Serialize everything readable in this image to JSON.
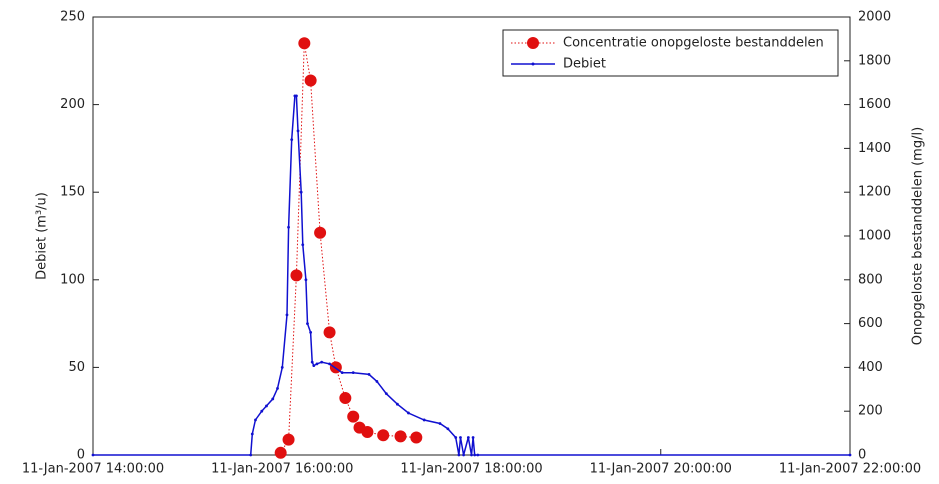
{
  "chart_data": {
    "type": "line",
    "xlim": [
      "11-Jan-2007 14:00:00",
      "11-Jan-2007 22:00:00"
    ],
    "xticks": [
      "11-Jan-2007 14:00:00",
      "11-Jan-2007 16:00:00",
      "11-Jan-2007 18:00:00",
      "11-Jan-2007 20:00:00",
      "11-Jan-2007 22:00:00"
    ],
    "ylabel": "Debiet (m³/u)",
    "y2label": "Onopgeloste bestanddelen (mg/l)",
    "ylim": [
      0,
      250
    ],
    "yticks": [
      0,
      50,
      100,
      150,
      200,
      250
    ],
    "y2lim": [
      0,
      2000
    ],
    "y2ticks": [
      0,
      200,
      400,
      600,
      800,
      1000,
      1200,
      1400,
      1600,
      1800,
      2000
    ],
    "legend": "upper right",
    "series": [
      {
        "name": "Concentratie onopgeloste bestanddelen",
        "color": "#e01010",
        "axis": "y2",
        "style": "dotted-marker",
        "x": [
          "11-Jan-2007 15:59:00",
          "11-Jan-2007 16:04:00",
          "11-Jan-2007 16:09:00",
          "11-Jan-2007 16:14:00",
          "11-Jan-2007 16:18:00",
          "11-Jan-2007 16:24:00",
          "11-Jan-2007 16:30:00",
          "11-Jan-2007 16:34:00",
          "11-Jan-2007 16:40:00",
          "11-Jan-2007 16:45:00",
          "11-Jan-2007 16:49:00",
          "11-Jan-2007 16:54:00",
          "11-Jan-2007 17:04:00",
          "11-Jan-2007 17:15:00",
          "11-Jan-2007 17:25:00"
        ],
        "values": [
          10,
          70,
          820,
          1880,
          1710,
          1015,
          560,
          400,
          260,
          175,
          125,
          105,
          90,
          85,
          80
        ]
      },
      {
        "name": "Debiet",
        "color": "#1010d0",
        "style": "line-dot",
        "x": [
          "11-Jan-2007 14:00:00",
          "11-Jan-2007 15:40:00",
          "11-Jan-2007 15:41:00",
          "11-Jan-2007 15:43:00",
          "11-Jan-2007 15:47:00",
          "11-Jan-2007 15:50:00",
          "11-Jan-2007 15:54:00",
          "11-Jan-2007 15:57:00",
          "11-Jan-2007 16:00:00",
          "11-Jan-2007 16:03:00",
          "11-Jan-2007 16:04:00",
          "11-Jan-2007 16:06:00",
          "11-Jan-2007 16:08:00",
          "11-Jan-2007 16:09:00",
          "11-Jan-2007 16:10:00",
          "11-Jan-2007 16:12:00",
          "11-Jan-2007 16:13:00",
          "11-Jan-2007 16:15:00",
          "11-Jan-2007 16:16:00",
          "11-Jan-2007 16:18:00",
          "11-Jan-2007 16:19:00",
          "11-Jan-2007 16:20:00",
          "11-Jan-2007 16:22:00",
          "11-Jan-2007 16:25:00",
          "11-Jan-2007 16:30:00",
          "11-Jan-2007 16:38:00",
          "11-Jan-2007 16:45:00",
          "11-Jan-2007 16:55:00",
          "11-Jan-2007 17:00:00",
          "11-Jan-2007 17:06:00",
          "11-Jan-2007 17:13:00",
          "11-Jan-2007 17:20:00",
          "11-Jan-2007 17:30:00",
          "11-Jan-2007 17:40:00",
          "11-Jan-2007 17:45:00",
          "11-Jan-2007 17:50:00",
          "11-Jan-2007 17:52:00",
          "11-Jan-2007 17:53:00",
          "11-Jan-2007 17:55:00",
          "11-Jan-2007 17:58:00",
          "11-Jan-2007 18:00:00",
          "11-Jan-2007 18:01:00",
          "11-Jan-2007 18:02:00",
          "11-Jan-2007 18:04:00",
          "11-Jan-2007 22:00:00"
        ],
        "values": [
          0,
          0,
          12,
          20,
          25,
          28,
          32,
          38,
          50,
          80,
          130,
          180,
          205,
          205,
          185,
          150,
          120,
          100,
          75,
          70,
          53,
          51,
          52,
          53,
          52,
          47,
          47,
          46,
          42,
          35,
          29,
          24,
          20,
          18,
          15,
          10,
          0,
          10,
          0,
          10,
          0,
          10,
          0,
          0,
          0
        ]
      }
    ]
  }
}
